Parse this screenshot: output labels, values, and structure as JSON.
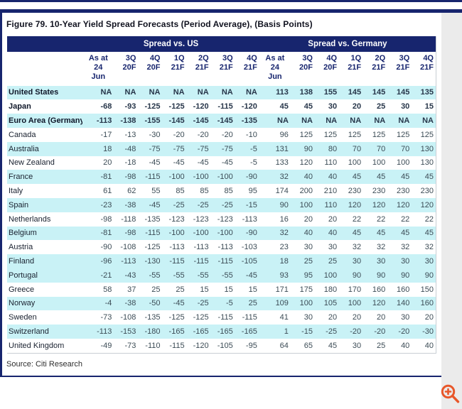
{
  "figure": {
    "title": "Figure 79. 10-Year Yield Spread Forecasts (Period Average), (Basis Points)",
    "source": "Source: Citi Research"
  },
  "colors": {
    "navy_header": "#17256E",
    "row_cyan": "#C9F2F6",
    "zoom_icon_orange": "#E8572A"
  },
  "icons": {
    "zoom": "magnifier-plus-icon"
  },
  "chart_data": {
    "type": "table",
    "title": "Figure 79. 10-Year Yield Spread Forecasts (Period Average), (Basis Points)",
    "source": "Source: Citi Research",
    "group_headers": [
      "Spread vs. US",
      "Spread vs. Germany"
    ],
    "column_headers": [
      "As at 24 Jun",
      "3Q 20F",
      "4Q 20F",
      "1Q 21F",
      "2Q 21F",
      "3Q 21F",
      "4Q 21F",
      "As at 24 Jun",
      "3Q 20F",
      "4Q 20F",
      "1Q 21F",
      "2Q 21F",
      "3Q 21F",
      "4Q 21F"
    ],
    "column_header_lines": [
      [
        "As at",
        "24",
        "Jun"
      ],
      [
        "3Q",
        "20F"
      ],
      [
        "4Q",
        "20F"
      ],
      [
        "1Q",
        "21F"
      ],
      [
        "2Q",
        "21F"
      ],
      [
        "3Q",
        "21F"
      ],
      [
        "4Q",
        "21F"
      ],
      [
        "As at",
        "24",
        "Jun"
      ],
      [
        "3Q",
        "20F"
      ],
      [
        "4Q",
        "20F"
      ],
      [
        "1Q",
        "21F"
      ],
      [
        "2Q",
        "21F"
      ],
      [
        "3Q",
        "21F"
      ],
      [
        "4Q",
        "21F"
      ]
    ],
    "rows": [
      {
        "label": "United States",
        "bold": true,
        "shade": "cyan",
        "values": [
          "NA",
          "NA",
          "NA",
          "NA",
          "NA",
          "NA",
          "NA",
          "113",
          "138",
          "155",
          "145",
          "145",
          "145",
          "135"
        ]
      },
      {
        "label": "Japan",
        "bold": true,
        "shade": "white",
        "values": [
          "-68",
          "-93",
          "-125",
          "-125",
          "-120",
          "-115",
          "-120",
          "45",
          "45",
          "30",
          "20",
          "25",
          "30",
          "15"
        ]
      },
      {
        "label": "Euro Area (Germany)",
        "bold": true,
        "shade": "cyan",
        "values": [
          "-113",
          "-138",
          "-155",
          "-145",
          "-145",
          "-145",
          "-135",
          "NA",
          "NA",
          "NA",
          "NA",
          "NA",
          "NA",
          "NA"
        ]
      },
      {
        "label": "Canada",
        "bold": false,
        "shade": "white",
        "values": [
          "-17",
          "-13",
          "-30",
          "-20",
          "-20",
          "-20",
          "-10",
          "96",
          "125",
          "125",
          "125",
          "125",
          "125",
          "125"
        ]
      },
      {
        "label": "Australia",
        "bold": false,
        "shade": "cyan",
        "values": [
          "18",
          "-48",
          "-75",
          "-75",
          "-75",
          "-75",
          "-5",
          "131",
          "90",
          "80",
          "70",
          "70",
          "70",
          "130"
        ]
      },
      {
        "label": "New Zealand",
        "bold": false,
        "shade": "white",
        "values": [
          "20",
          "-18",
          "-45",
          "-45",
          "-45",
          "-45",
          "-5",
          "133",
          "120",
          "110",
          "100",
          "100",
          "100",
          "130"
        ]
      },
      {
        "label": "France",
        "bold": false,
        "shade": "cyan",
        "values": [
          "-81",
          "-98",
          "-115",
          "-100",
          "-100",
          "-100",
          "-90",
          "32",
          "40",
          "40",
          "45",
          "45",
          "45",
          "45"
        ]
      },
      {
        "label": "Italy",
        "bold": false,
        "shade": "white",
        "values": [
          "61",
          "62",
          "55",
          "85",
          "85",
          "85",
          "95",
          "174",
          "200",
          "210",
          "230",
          "230",
          "230",
          "230"
        ]
      },
      {
        "label": "Spain",
        "bold": false,
        "shade": "cyan",
        "values": [
          "-23",
          "-38",
          "-45",
          "-25",
          "-25",
          "-25",
          "-15",
          "90",
          "100",
          "110",
          "120",
          "120",
          "120",
          "120"
        ]
      },
      {
        "label": "Netherlands",
        "bold": false,
        "shade": "white",
        "values": [
          "-98",
          "-118",
          "-135",
          "-123",
          "-123",
          "-123",
          "-113",
          "16",
          "20",
          "20",
          "22",
          "22",
          "22",
          "22"
        ]
      },
      {
        "label": "Belgium",
        "bold": false,
        "shade": "cyan",
        "values": [
          "-81",
          "-98",
          "-115",
          "-100",
          "-100",
          "-100",
          "-90",
          "32",
          "40",
          "40",
          "45",
          "45",
          "45",
          "45"
        ]
      },
      {
        "label": "Austria",
        "bold": false,
        "shade": "white",
        "values": [
          "-90",
          "-108",
          "-125",
          "-113",
          "-113",
          "-113",
          "-103",
          "23",
          "30",
          "30",
          "32",
          "32",
          "32",
          "32"
        ]
      },
      {
        "label": "Finland",
        "bold": false,
        "shade": "cyan",
        "values": [
          "-96",
          "-113",
          "-130",
          "-115",
          "-115",
          "-115",
          "-105",
          "18",
          "25",
          "25",
          "30",
          "30",
          "30",
          "30"
        ]
      },
      {
        "label": "Portugal",
        "bold": false,
        "shade": "cyan",
        "values": [
          "-21",
          "-43",
          "-55",
          "-55",
          "-55",
          "-55",
          "-45",
          "93",
          "95",
          "100",
          "90",
          "90",
          "90",
          "90"
        ]
      },
      {
        "label": "Greece",
        "bold": false,
        "shade": "white",
        "values": [
          "58",
          "37",
          "25",
          "25",
          "15",
          "15",
          "15",
          "171",
          "175",
          "180",
          "170",
          "160",
          "160",
          "150"
        ]
      },
      {
        "label": "Norway",
        "bold": false,
        "shade": "cyan",
        "values": [
          "-4",
          "-38",
          "-50",
          "-45",
          "-25",
          "-5",
          "25",
          "109",
          "100",
          "105",
          "100",
          "120",
          "140",
          "160"
        ]
      },
      {
        "label": "Sweden",
        "bold": false,
        "shade": "white",
        "values": [
          "-73",
          "-108",
          "-135",
          "-125",
          "-125",
          "-115",
          "-115",
          "41",
          "30",
          "20",
          "20",
          "20",
          "30",
          "20"
        ]
      },
      {
        "label": "Switzerland",
        "bold": false,
        "shade": "cyan",
        "values": [
          "-113",
          "-153",
          "-180",
          "-165",
          "-165",
          "-165",
          "-165",
          "1",
          "-15",
          "-25",
          "-20",
          "-20",
          "-20",
          "-30"
        ]
      },
      {
        "label": "United Kingdom",
        "bold": false,
        "shade": "white",
        "values": [
          "-49",
          "-73",
          "-110",
          "-115",
          "-120",
          "-105",
          "-95",
          "64",
          "65",
          "45",
          "30",
          "25",
          "40",
          "40"
        ]
      }
    ]
  }
}
